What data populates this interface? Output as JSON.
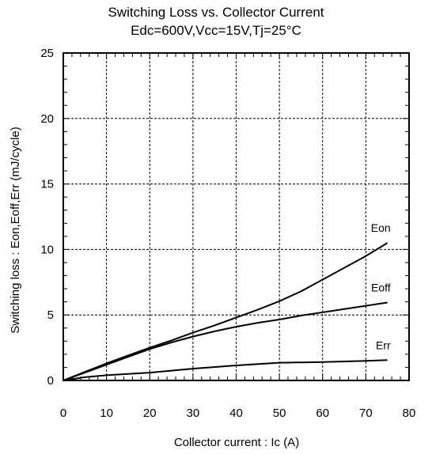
{
  "chart_data": {
    "type": "line",
    "title": "Switching Loss vs. Collector Current",
    "subtitle": "Edc=600V,Vcc=15V,Tj=25°C",
    "xlabel": "Collector current : Ic  (A)",
    "ylabel": "Switching loss : Eon,Eoff,Err  (mJ/cycle)",
    "xlim": [
      0,
      80
    ],
    "ylim": [
      0,
      25
    ],
    "xticks": [
      0,
      10,
      20,
      30,
      40,
      50,
      60,
      70,
      80
    ],
    "yticks": [
      0,
      5,
      10,
      15,
      20,
      25
    ],
    "grid": true,
    "series": [
      {
        "name": "Eon",
        "x": [
          0,
          5,
          10,
          15,
          20,
          25,
          30,
          35,
          40,
          45,
          50,
          55,
          60,
          65,
          70,
          75
        ],
        "y": [
          0,
          0.65,
          1.3,
          1.9,
          2.5,
          3.05,
          3.65,
          4.2,
          4.8,
          5.4,
          6.05,
          6.8,
          7.7,
          8.6,
          9.5,
          10.5
        ]
      },
      {
        "name": "Eoff",
        "x": [
          0,
          5,
          10,
          15,
          20,
          25,
          30,
          35,
          40,
          45,
          50,
          55,
          60,
          65,
          70,
          75
        ],
        "y": [
          0,
          0.6,
          1.2,
          1.8,
          2.4,
          2.9,
          3.35,
          3.75,
          4.1,
          4.4,
          4.65,
          4.95,
          5.2,
          5.45,
          5.7,
          5.95
        ]
      },
      {
        "name": "Err",
        "x": [
          0,
          5,
          10,
          20,
          30,
          40,
          50,
          60,
          70,
          75
        ],
        "y": [
          0,
          0.25,
          0.4,
          0.6,
          0.9,
          1.15,
          1.35,
          1.4,
          1.5,
          1.55
        ]
      }
    ]
  }
}
